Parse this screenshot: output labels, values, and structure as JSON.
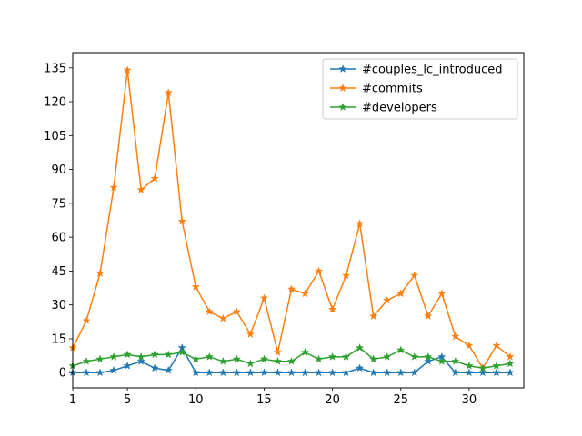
{
  "chart_data": {
    "type": "line",
    "title": "",
    "xlabel": "",
    "ylabel": "",
    "xlim": [
      1,
      34
    ],
    "ylim": [
      -6.75,
      141.75
    ],
    "xticks": [
      1,
      5,
      10,
      15,
      20,
      25,
      30
    ],
    "yticks": [
      0,
      15,
      30,
      45,
      60,
      75,
      90,
      105,
      120,
      135
    ],
    "grid": false,
    "legend_position": "top-right",
    "marker": "star",
    "x": [
      1,
      2,
      3,
      4,
      5,
      6,
      7,
      8,
      9,
      10,
      11,
      12,
      13,
      14,
      15,
      16,
      17,
      18,
      19,
      20,
      21,
      22,
      23,
      24,
      25,
      26,
      27,
      28,
      29,
      30,
      31,
      32,
      33
    ],
    "series": [
      {
        "name": "#couples_lc_introduced",
        "color": "#1f77b4",
        "values": [
          0,
          0,
          0,
          1,
          3,
          5,
          2,
          1,
          11,
          0,
          0,
          0,
          0,
          0,
          0,
          0,
          0,
          0,
          0,
          0,
          0,
          2,
          0,
          0,
          0,
          0,
          5,
          7,
          0,
          0,
          0,
          0,
          0
        ]
      },
      {
        "name": "#commits",
        "color": "#ff7f0e",
        "values": [
          11,
          23,
          44,
          82,
          134,
          81,
          86,
          124,
          67,
          38,
          27,
          24,
          27,
          17,
          33,
          9,
          37,
          35,
          45,
          28,
          43,
          66,
          25,
          32,
          35,
          43,
          25,
          35,
          16,
          12,
          2,
          12,
          7
        ]
      },
      {
        "name": "#developers",
        "color": "#2ca02c",
        "values": [
          3,
          5,
          6,
          7,
          8,
          7,
          8,
          8,
          9,
          6,
          7,
          5,
          6,
          4,
          6,
          5,
          5,
          9,
          6,
          7,
          7,
          11,
          6,
          7,
          10,
          7,
          7,
          5,
          5,
          3,
          2,
          3,
          4
        ]
      }
    ]
  }
}
